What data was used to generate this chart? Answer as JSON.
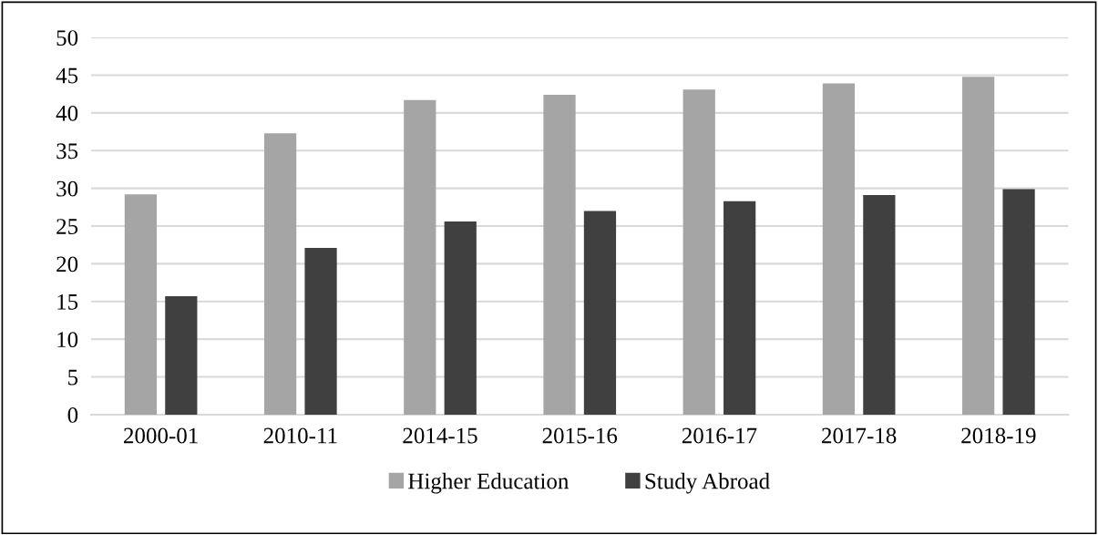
{
  "chart_data": {
    "type": "bar",
    "categories": [
      "2000-01",
      "2010-11",
      "2014-15",
      "2015-16",
      "2016-17",
      "2017-18",
      "2018-19"
    ],
    "series": [
      {
        "name": "Higher Education",
        "color": "#a5a5a5",
        "values": [
          29.2,
          37.3,
          41.7,
          42.4,
          43.1,
          43.9,
          44.8
        ]
      },
      {
        "name": "Study Abroad",
        "color": "#404040",
        "values": [
          15.7,
          22.1,
          25.6,
          27.0,
          28.3,
          29.1,
          29.9
        ]
      }
    ],
    "ylim": [
      0,
      50
    ],
    "yticks": [
      0,
      5,
      10,
      15,
      20,
      25,
      30,
      35,
      40,
      45,
      50
    ],
    "grid": "y",
    "legend": "bottom"
  }
}
